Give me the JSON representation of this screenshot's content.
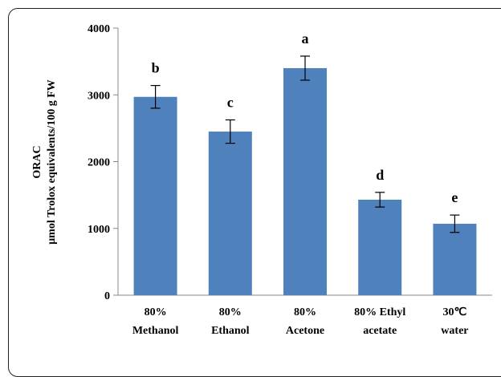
{
  "chart_data": {
    "type": "bar",
    "ylabel_lines": [
      "ORAC",
      "μmol Trolox equivalents/100 g FW"
    ],
    "ylim": [
      0,
      4000
    ],
    "yticks": [
      0,
      1000,
      2000,
      3000,
      4000
    ],
    "ytick_labels": [
      "0",
      "1000",
      "2000",
      "3000",
      "4000"
    ],
    "grid": false,
    "bar_color": "#4F81BD",
    "categories": [
      {
        "line1": "80%",
        "line2": "Methanol"
      },
      {
        "line1": "80%",
        "line2": "Ethanol"
      },
      {
        "line1": "80%",
        "line2": "Acetone"
      },
      {
        "line1": "80%  Ethyl",
        "line2": "acetate"
      },
      {
        "line1": "30℃",
        "line2": "water"
      }
    ],
    "values": [
      2970,
      2450,
      3400,
      1430,
      1070
    ],
    "errors": [
      170,
      175,
      180,
      110,
      130
    ],
    "significance_labels": [
      "b",
      "c",
      "a",
      "d",
      "e"
    ]
  }
}
